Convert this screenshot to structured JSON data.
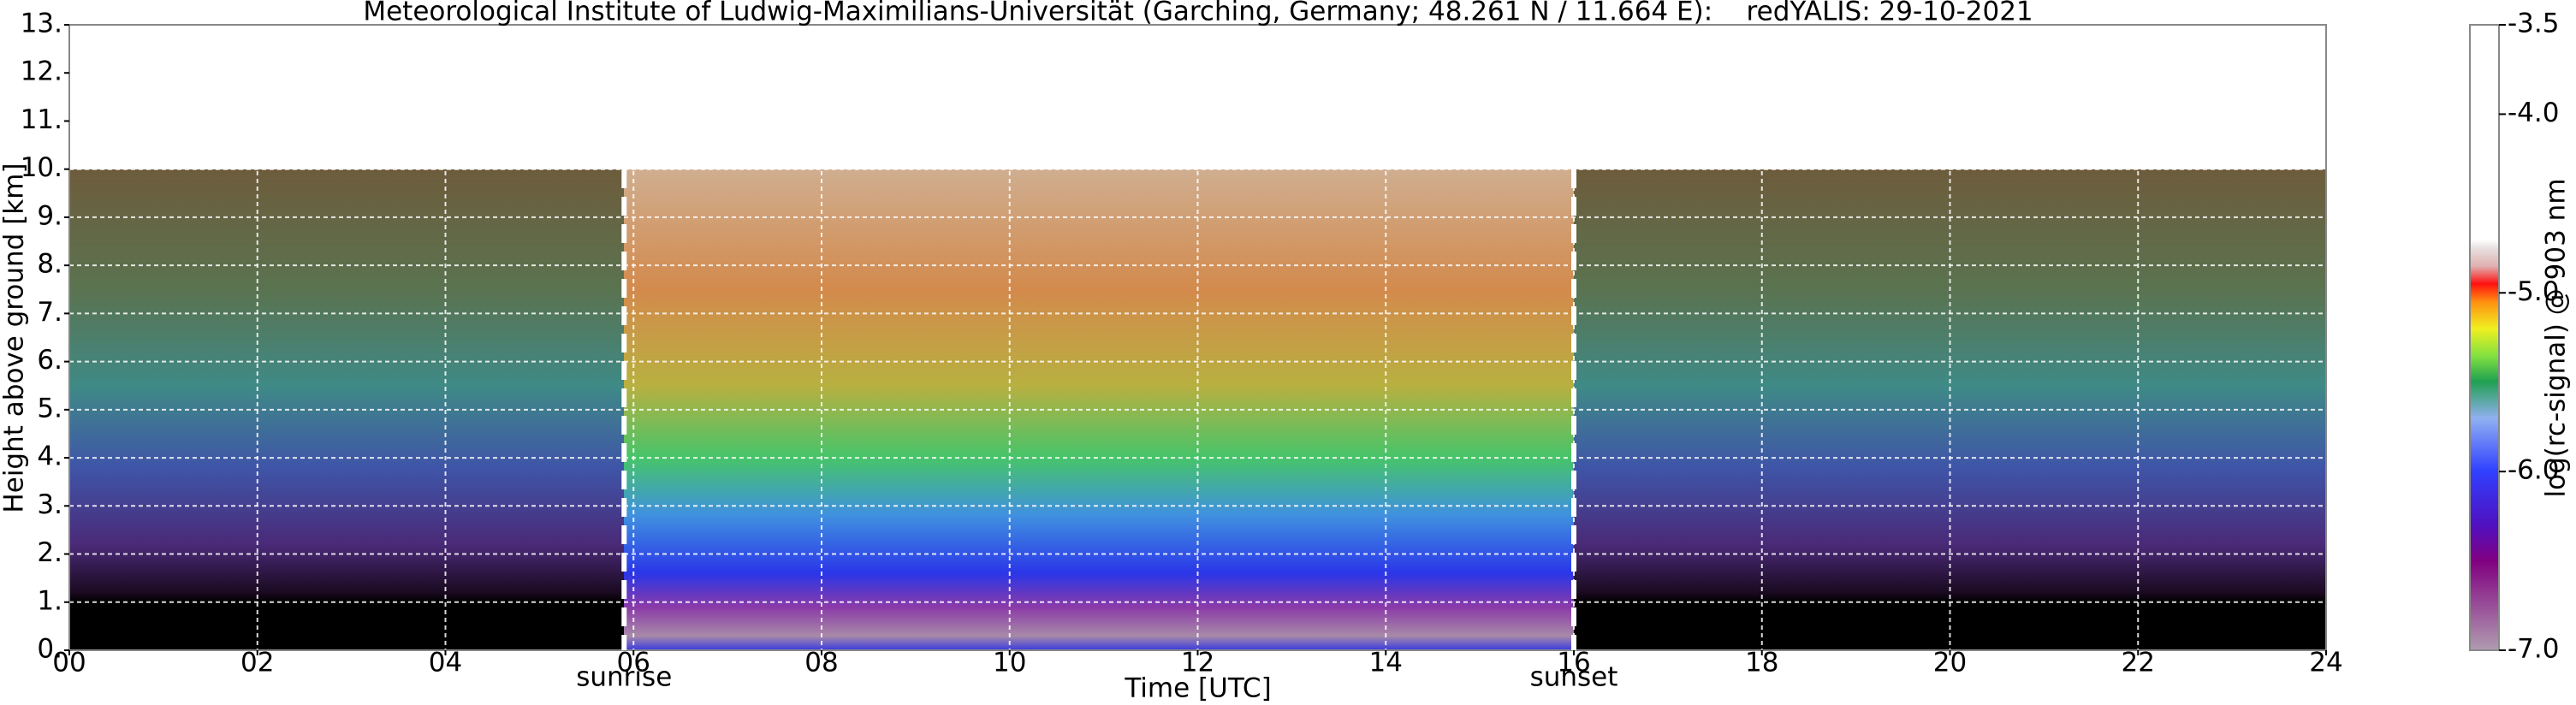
{
  "chart_data": {
    "type": "heatmap",
    "title": "Meteorological Institute of Ludwig-Maximilians-Universität (Garching, Germany; 48.261 N / 11.664 E):    redYALIS: 29-10-2021",
    "xlabel": "Time [UTC]",
    "ylabel": "Height above ground [km]",
    "xlim": [
      0,
      24
    ],
    "xticks": [
      {
        "value": 0,
        "label": "00"
      },
      {
        "value": 2,
        "label": "02"
      },
      {
        "value": 4,
        "label": "04"
      },
      {
        "value": 6,
        "label": "06"
      },
      {
        "value": 8,
        "label": "08"
      },
      {
        "value": 10,
        "label": "10"
      },
      {
        "value": 12,
        "label": "12"
      },
      {
        "value": 14,
        "label": "14"
      },
      {
        "value": 16,
        "label": "16"
      },
      {
        "value": 18,
        "label": "18"
      },
      {
        "value": 20,
        "label": "20"
      },
      {
        "value": 22,
        "label": "22"
      },
      {
        "value": 24,
        "label": "24"
      }
    ],
    "ylim": [
      0,
      13
    ],
    "yticks": [
      {
        "value": 0,
        "label": "0."
      },
      {
        "value": 1,
        "label": "1."
      },
      {
        "value": 2,
        "label": "2."
      },
      {
        "value": 3,
        "label": "3."
      },
      {
        "value": 4,
        "label": "4."
      },
      {
        "value": 5,
        "label": "5."
      },
      {
        "value": 6,
        "label": "6."
      },
      {
        "value": 7,
        "label": "7."
      },
      {
        "value": 8,
        "label": "8."
      },
      {
        "value": 9,
        "label": "9."
      },
      {
        "value": 10,
        "label": "10."
      },
      {
        "value": 11,
        "label": "11."
      },
      {
        "value": 12,
        "label": "12."
      },
      {
        "value": 13,
        "label": "13."
      }
    ],
    "grid": true,
    "annotations": [
      {
        "text": "sunrise",
        "x": 5.9
      },
      {
        "text": "sunset",
        "x": 16.0
      }
    ],
    "colorbar": {
      "label": "log(rc-signal) @ 903 nm",
      "lim": [
        -7.0,
        -3.5
      ],
      "ticks": [
        {
          "value": -7.0,
          "label": "-7.0"
        },
        {
          "value": -6.0,
          "label": "-6.0"
        },
        {
          "value": -5.0,
          "label": "-5.0"
        },
        {
          "value": -4.0,
          "label": "-4.0"
        },
        {
          "value": -3.5,
          "label": "-3.5"
        }
      ]
    }
  }
}
